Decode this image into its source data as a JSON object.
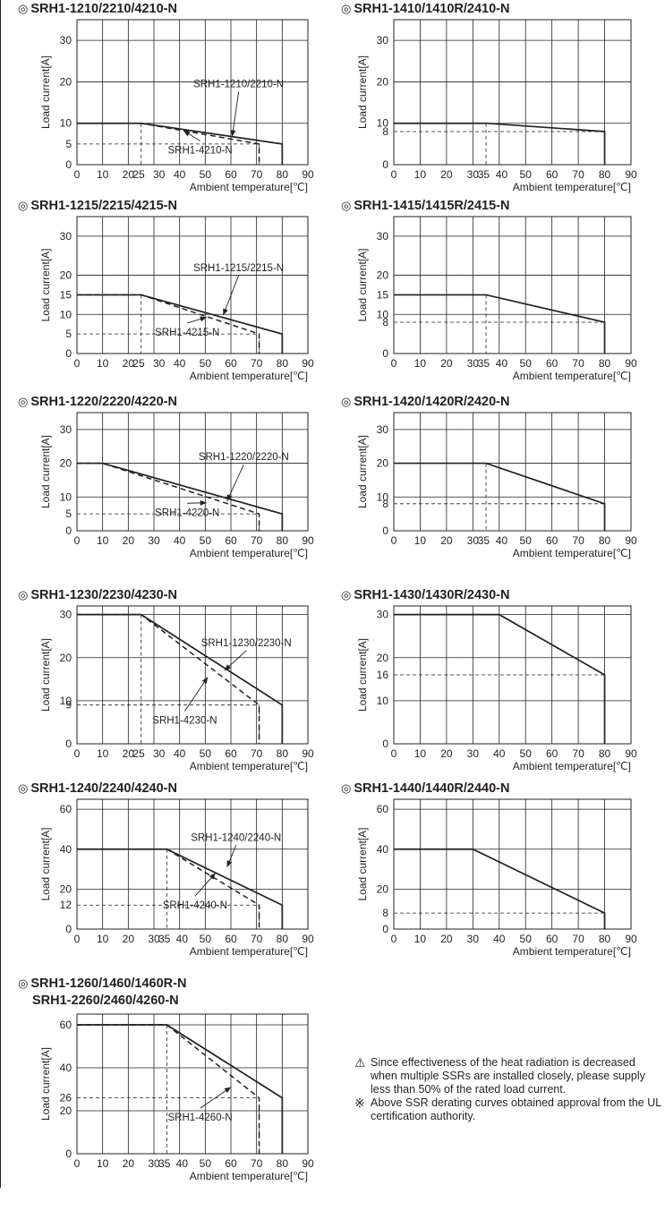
{
  "notes": {
    "warning_text": "Since effectiveness of the heat radiation is decreased when multiple SSRs are installed closely, please supply less than 50% of the rated load current.",
    "remark_symbol": "※",
    "remark_text": "Above SSR derating curves obtained approval from the UL certification authority."
  },
  "chart_data": [
    {
      "type": "line",
      "title": "SRH1-1210/2210/4210-N",
      "xlabel": "Ambient temperature[℃]",
      "ylabel": "Load current[A]",
      "xlim": [
        0,
        90
      ],
      "ylim": [
        0,
        35
      ],
      "xticks": [
        0,
        10,
        20,
        25,
        30,
        40,
        50,
        60,
        70,
        80,
        90
      ],
      "yticks": [
        0,
        5,
        10,
        20,
        30
      ],
      "grid": true,
      "series": [
        {
          "name": "SRH1-1210/2210-N",
          "style": "solid",
          "x": [
            0,
            25,
            80,
            80
          ],
          "y": [
            10,
            10,
            5,
            0
          ]
        },
        {
          "name": "SRH1-4210-N",
          "style": "dashed",
          "x": [
            0,
            25,
            71,
            71
          ],
          "y": [
            10,
            10,
            5,
            0
          ]
        }
      ],
      "refs": [
        {
          "x": 25,
          "y": 10
        },
        {
          "x": 71,
          "y": 5
        }
      ],
      "annotations": [
        {
          "text": "SRH1-1210/2210-N",
          "from": [
            63,
            19.5
          ],
          "to": [
            60.5,
            6.8
          ]
        },
        {
          "text": "SRH1-4210-N",
          "from": [
            48,
            3.6
          ],
          "to": [
            41.5,
            8.2
          ]
        }
      ]
    },
    {
      "type": "line",
      "title": "SRH1-1410/1410R/2410-N",
      "xlabel": "Ambient temperature[℃]",
      "ylabel": "Load current[A]",
      "xlim": [
        0,
        90
      ],
      "ylim": [
        0,
        35
      ],
      "xticks": [
        0,
        10,
        20,
        30,
        35,
        40,
        50,
        60,
        70,
        80,
        90
      ],
      "yticks": [
        0,
        8,
        10,
        20,
        30
      ],
      "grid": true,
      "series": [
        {
          "style": "solid",
          "x": [
            0,
            35,
            80,
            80
          ],
          "y": [
            10,
            10,
            8,
            0
          ]
        }
      ],
      "refs": [
        {
          "x": 35,
          "y": 10
        },
        {
          "x": 80,
          "y": 8
        }
      ],
      "annotations": []
    },
    {
      "type": "line",
      "title": "SRH1-1215/2215/4215-N",
      "xlabel": "Ambient temperature[℃]",
      "ylabel": "Load current[A]",
      "xlim": [
        0,
        90
      ],
      "ylim": [
        0,
        35
      ],
      "xticks": [
        0,
        10,
        20,
        25,
        30,
        40,
        50,
        60,
        70,
        80,
        90
      ],
      "yticks": [
        0,
        5,
        10,
        15,
        20,
        30
      ],
      "grid": true,
      "series": [
        {
          "name": "SRH1-1215/2215-N",
          "style": "solid",
          "x": [
            0,
            25,
            80,
            80
          ],
          "y": [
            15,
            15,
            5,
            0
          ]
        },
        {
          "name": "SRH1-4215-N",
          "style": "dashed",
          "x": [
            0,
            25,
            71,
            71
          ],
          "y": [
            15,
            15,
            5,
            0
          ]
        }
      ],
      "refs": [
        {
          "x": 25,
          "y": 15
        },
        {
          "x": 71,
          "y": 5
        }
      ],
      "annotations": [
        {
          "text": "SRH1-1215/2215-N",
          "from": [
            63,
            22
          ],
          "to": [
            57,
            9.8
          ]
        },
        {
          "text": "SRH1-4215-N",
          "from": [
            43,
            5.5
          ],
          "to": [
            50.5,
            9.3
          ]
        }
      ]
    },
    {
      "type": "line",
      "title": "SRH1-1415/1415R/2415-N",
      "xlabel": "Ambient temperature[℃]",
      "ylabel": "Load current[A]",
      "xlim": [
        0,
        90
      ],
      "ylim": [
        0,
        35
      ],
      "xticks": [
        0,
        10,
        20,
        30,
        35,
        40,
        50,
        60,
        70,
        80,
        90
      ],
      "yticks": [
        0,
        8,
        10,
        15,
        20,
        30
      ],
      "grid": true,
      "series": [
        {
          "style": "solid",
          "x": [
            0,
            35,
            80,
            80
          ],
          "y": [
            15,
            15,
            8,
            0
          ]
        }
      ],
      "refs": [
        {
          "x": 35,
          "y": 15
        },
        {
          "x": 80,
          "y": 8
        }
      ],
      "annotations": []
    },
    {
      "type": "line",
      "title": "SRH1-1220/2220/4220-N",
      "xlabel": "Ambient temperature[℃]",
      "ylabel": "Load current[A]",
      "xlim": [
        0,
        90
      ],
      "ylim": [
        0,
        35
      ],
      "xticks": [
        0,
        10,
        20,
        30,
        40,
        50,
        60,
        70,
        80,
        90
      ],
      "yticks": [
        0,
        5,
        10,
        20,
        30
      ],
      "grid": true,
      "series": [
        {
          "name": "SRH1-1220/2220-N",
          "style": "solid",
          "x": [
            0,
            10,
            80,
            80
          ],
          "y": [
            20,
            20,
            5,
            0
          ]
        },
        {
          "name": "SRH1-4220-N",
          "style": "dashed",
          "x": [
            0,
            10,
            71,
            71
          ],
          "y": [
            20,
            20,
            5,
            0
          ]
        }
      ],
      "refs": [
        {
          "x": 71,
          "y": 5
        }
      ],
      "annotations": [
        {
          "text": "SRH1-1220/2220-N",
          "from": [
            65,
            22
          ],
          "to": [
            58.5,
            8.8
          ]
        },
        {
          "text": "SRH1-4220-N",
          "from": [
            43,
            5.5
          ],
          "to": [
            50.5,
            8.3
          ]
        }
      ]
    },
    {
      "type": "line",
      "title": "SRH1-1420/1420R/2420-N",
      "xlabel": "Ambient temperature[℃]",
      "ylabel": "Load current[A]",
      "xlim": [
        0,
        90
      ],
      "ylim": [
        0,
        35
      ],
      "xticks": [
        0,
        10,
        20,
        30,
        35,
        40,
        50,
        60,
        70,
        80,
        90
      ],
      "yticks": [
        0,
        8,
        10,
        20,
        30
      ],
      "grid": true,
      "series": [
        {
          "style": "solid",
          "x": [
            0,
            35,
            80,
            80
          ],
          "y": [
            20,
            20,
            8,
            0
          ]
        }
      ],
      "refs": [
        {
          "x": 35,
          "y": 20
        },
        {
          "x": 80,
          "y": 8
        }
      ],
      "annotations": []
    },
    {
      "type": "line",
      "title": "SRH1-1230/2230/4230-N",
      "xlabel": "Ambient temperature[℃]",
      "ylabel": "Load current[A]",
      "xlim": [
        0,
        90
      ],
      "ylim": [
        0,
        32
      ],
      "xticks": [
        0,
        10,
        20,
        25,
        30,
        40,
        50,
        60,
        70,
        80,
        90
      ],
      "yticks": [
        0,
        9,
        10,
        20,
        30
      ],
      "grid": true,
      "series": [
        {
          "name": "SRH1-1230/2230-N",
          "style": "solid",
          "x": [
            0,
            25,
            80,
            80
          ],
          "y": [
            30,
            30,
            9,
            0
          ]
        },
        {
          "name": "SRH1-4230-N",
          "style": "dashed",
          "x": [
            0,
            25,
            71,
            71
          ],
          "y": [
            30,
            30,
            9,
            0
          ]
        }
      ],
      "refs": [
        {
          "x": 25,
          "y": 30
        },
        {
          "x": 71,
          "y": 9
        }
      ],
      "annotations": [
        {
          "text": "SRH1-1230/2230-N",
          "from": [
            66,
            23.5
          ],
          "to": [
            57.5,
            17
          ]
        },
        {
          "text": "SRH1-4230-N",
          "from": [
            42,
            5.5
          ],
          "to": [
            51,
            15.5
          ]
        }
      ]
    },
    {
      "type": "line",
      "title": "SRH1-1430/1430R/2430-N",
      "xlabel": "Ambient temperature[℃]",
      "ylabel": "Load current[A]",
      "xlim": [
        0,
        90
      ],
      "ylim": [
        0,
        32
      ],
      "xticks": [
        0,
        10,
        20,
        30,
        40,
        50,
        60,
        70,
        80,
        90
      ],
      "yticks": [
        0,
        10,
        16,
        20,
        30
      ],
      "grid": true,
      "series": [
        {
          "style": "solid",
          "x": [
            0,
            40,
            80,
            80
          ],
          "y": [
            30,
            30,
            16,
            0
          ]
        }
      ],
      "refs": [
        {
          "x": 80,
          "y": 16
        }
      ],
      "annotations": []
    },
    {
      "type": "line",
      "title": "SRH1-1240/2240/4240-N",
      "xlabel": "Ambient temperature[℃]",
      "ylabel": "Load current[A]",
      "xlim": [
        0,
        90
      ],
      "ylim": [
        0,
        65
      ],
      "xticks": [
        0,
        10,
        20,
        30,
        35,
        40,
        50,
        60,
        70,
        80,
        90
      ],
      "yticks": [
        0,
        12,
        20,
        40,
        60
      ],
      "grid": true,
      "series": [
        {
          "name": "SRH1-1240/2240-N",
          "style": "solid",
          "x": [
            0,
            35,
            80,
            80
          ],
          "y": [
            40,
            40,
            12,
            0
          ]
        },
        {
          "name": "SRH1-4240-N",
          "style": "dashed",
          "x": [
            0,
            35,
            71,
            71
          ],
          "y": [
            40,
            40,
            12,
            0
          ]
        }
      ],
      "refs": [
        {
          "x": 35,
          "y": 40
        },
        {
          "x": 71,
          "y": 12
        }
      ],
      "annotations": [
        {
          "text": "SRH1-1240/2240-N",
          "from": [
            62,
            46
          ],
          "to": [
            58.5,
            31
          ]
        },
        {
          "text": "SRH1-4240-N",
          "from": [
            46,
            12
          ],
          "to": [
            54,
            28
          ]
        }
      ]
    },
    {
      "type": "line",
      "title": "SRH1-1440/1440R/2440-N",
      "xlabel": "Ambient temperature[℃]",
      "ylabel": "Load current[A]",
      "xlim": [
        0,
        90
      ],
      "ylim": [
        0,
        65
      ],
      "xticks": [
        0,
        10,
        20,
        30,
        40,
        50,
        60,
        70,
        80,
        90
      ],
      "yticks": [
        0,
        8,
        20,
        40,
        60
      ],
      "grid": true,
      "series": [
        {
          "style": "solid",
          "x": [
            0,
            30,
            80,
            80
          ],
          "y": [
            40,
            40,
            8,
            0
          ]
        }
      ],
      "refs": [
        {
          "x": 80,
          "y": 8
        }
      ],
      "annotations": []
    },
    {
      "type": "line",
      "title": "SRH1-1260/1460/1460R-N",
      "title_line2": "SRH1-2260/2460/4260-N",
      "xlabel": "Ambient temperature[℃]",
      "ylabel": "Load current[A]",
      "xlim": [
        0,
        90
      ],
      "ylim": [
        0,
        65
      ],
      "xticks": [
        0,
        10,
        20,
        30,
        35,
        40,
        50,
        60,
        70,
        80,
        90
      ],
      "yticks": [
        0,
        20,
        26,
        40,
        60
      ],
      "grid": true,
      "series": [
        {
          "style": "solid",
          "x": [
            0,
            35,
            80,
            80
          ],
          "y": [
            60,
            60,
            26,
            0
          ]
        },
        {
          "name": "SRH1-4260-N",
          "style": "dashed",
          "x": [
            0,
            35,
            71,
            71
          ],
          "y": [
            60,
            60,
            26,
            0
          ]
        }
      ],
      "refs": [
        {
          "x": 35,
          "y": 60
        },
        {
          "x": 71,
          "y": 26
        }
      ],
      "annotations": [
        {
          "text": "SRH1-4260-N",
          "from": [
            48,
            17
          ],
          "to": [
            60,
            31
          ]
        }
      ]
    }
  ]
}
